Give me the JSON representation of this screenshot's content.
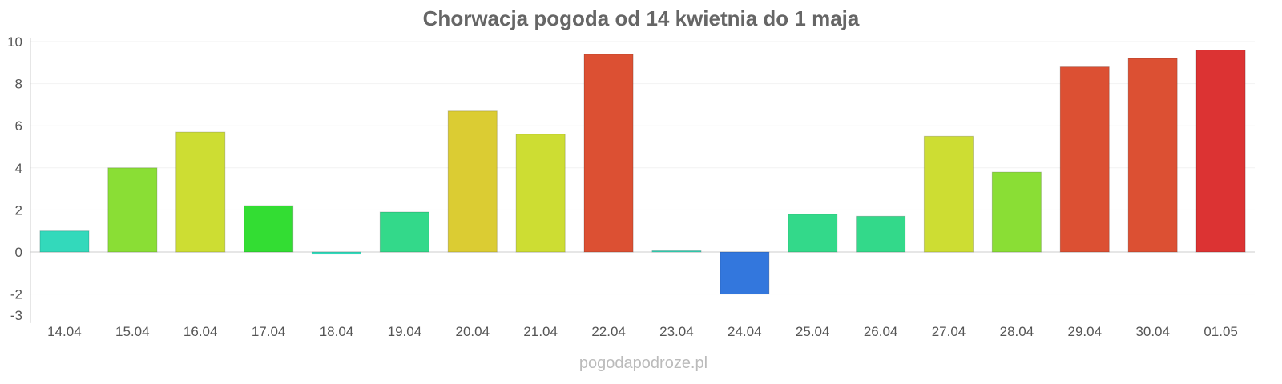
{
  "chart_data": {
    "type": "bar",
    "title": "Chorwacja pogoda od 14 kwietnia do 1 maja",
    "xlabel": "",
    "ylabel": "",
    "ylim": [
      -3,
      10
    ],
    "yticks": [
      -3,
      -2,
      0,
      2,
      4,
      6,
      8,
      10
    ],
    "grid": true,
    "categories": [
      "14.04",
      "15.04",
      "16.04",
      "17.04",
      "18.04",
      "19.04",
      "20.04",
      "21.04",
      "22.04",
      "23.04",
      "24.04",
      "25.04",
      "26.04",
      "27.04",
      "28.04",
      "29.04",
      "30.04",
      "01.05"
    ],
    "values": [
      1.0,
      4.0,
      5.7,
      2.2,
      -0.1,
      1.9,
      6.7,
      5.6,
      9.4,
      0.0,
      -2.0,
      1.8,
      1.7,
      5.5,
      3.8,
      8.8,
      9.2,
      9.6
    ],
    "colors": [
      "#33d9bb",
      "#8ade35",
      "#cddd33",
      "#33dd33",
      "#33d9bb",
      "#33d98a",
      "#dbcc33",
      "#cddd33",
      "#dc5033",
      "#33d9bb",
      "#3377dd",
      "#33d98a",
      "#33d98a",
      "#cddd33",
      "#8ade35",
      "#dc5033",
      "#dc5033",
      "#dc3333"
    ]
  },
  "watermark": "pogodapodroze.pl"
}
